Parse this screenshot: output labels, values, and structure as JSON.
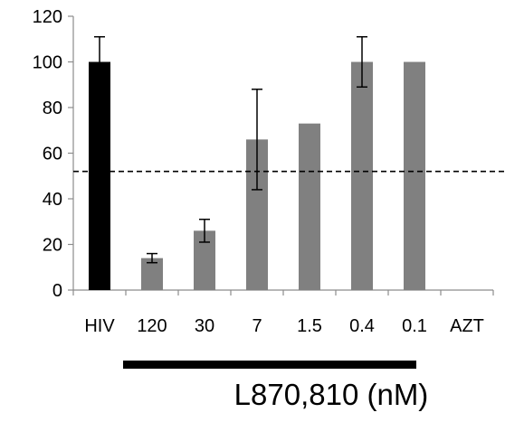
{
  "chart_data": {
    "type": "bar",
    "categories": [
      "HIV",
      "120",
      "30",
      "7",
      "1.5",
      "0.4",
      "0.1",
      "AZT"
    ],
    "values": [
      100,
      14,
      26,
      66,
      73,
      100,
      100,
      0
    ],
    "error": [
      11,
      2,
      5,
      22,
      0,
      11,
      0,
      0
    ],
    "bar_colors": [
      "#000000",
      "#808080",
      "#808080",
      "#808080",
      "#808080",
      "#808080",
      "#808080",
      "#808080"
    ],
    "ylim": [
      0,
      120
    ],
    "yticks": [
      "0",
      "20",
      "40",
      "60",
      "80",
      "100",
      "120"
    ],
    "reference_line": {
      "value": 52,
      "style": "dashed",
      "color": "#000000"
    },
    "group_bar": {
      "label": "L870,810 (nM)",
      "from_category": "120",
      "to_category": "0.1",
      "color": "#000000"
    },
    "xlabel": "",
    "ylabel": "",
    "title": "",
    "grid": false,
    "legend": "none"
  }
}
